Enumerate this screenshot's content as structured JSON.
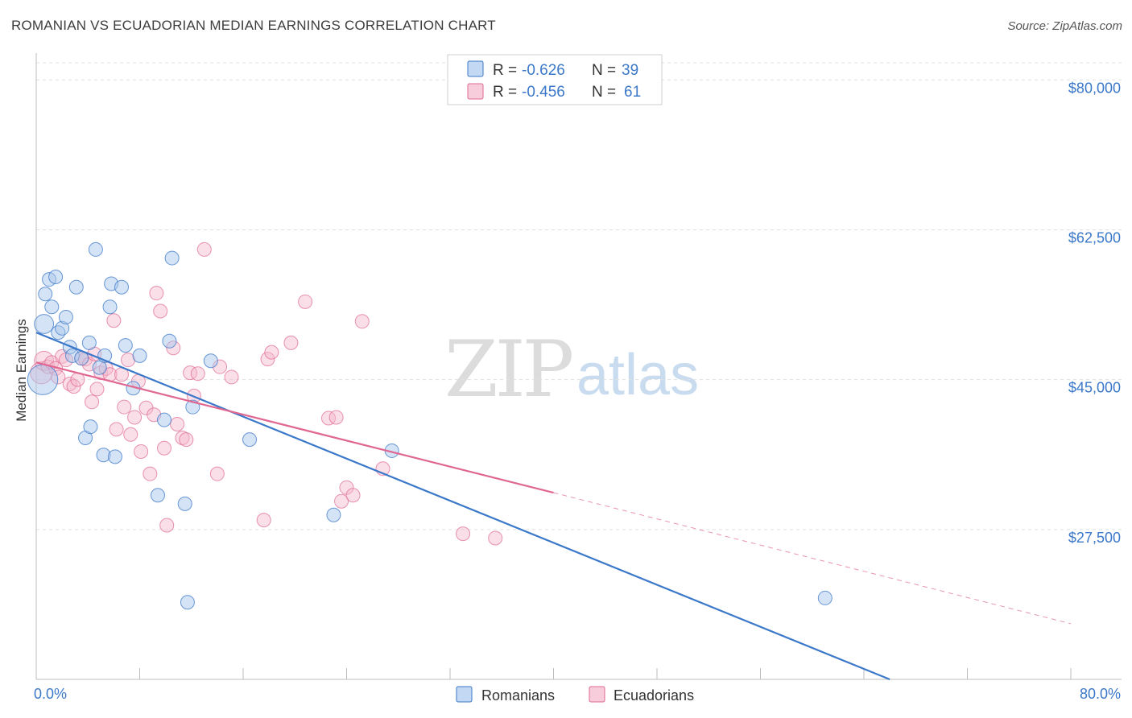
{
  "title": "ROMANIAN VS ECUADORIAN MEDIAN EARNINGS CORRELATION CHART",
  "source": "Source: ZipAtlas.com",
  "watermark": {
    "zip": "ZIP",
    "atlas": "atlas"
  },
  "colors": {
    "romanian": "#3b78c9",
    "romanian_fill": "#a9c8ec",
    "ecuadorian": "#e06791",
    "ecuadorian_fill": "#f5b8cc",
    "axis_text": "#3b78c9",
    "grid": "#e0e0e0"
  },
  "legend": {
    "r_label": "R =",
    "n_label": "N =",
    "romanian_r": "-0.626",
    "romanian_n": "39",
    "ecuadorian_r": "-0.456",
    "ecuadorian_n": "61"
  },
  "bottom_legend": {
    "romanians": "Romanians",
    "ecuadorians": "Ecuadorians"
  },
  "chart_data": {
    "type": "scatter",
    "title": "ROMANIAN VS ECUADORIAN MEDIAN EARNINGS CORRELATION CHART",
    "xlabel": "",
    "ylabel": "Median Earnings",
    "xlim": [
      0,
      80
    ],
    "ylim": [
      10000,
      82000
    ],
    "y_ticks": [
      27500,
      45000,
      62500,
      80000
    ],
    "y_tick_labels": [
      "$27,500",
      "$45,000",
      "$62,500",
      "$80,000"
    ],
    "x_tick_labels": [
      "0.0%",
      "80.0%"
    ],
    "series": [
      {
        "name": "Romanians",
        "color": "#3b78c9",
        "points": [
          [
            0.5,
            45000,
            2.2
          ],
          [
            0.6,
            51500,
            1.4
          ],
          [
            0.7,
            55000,
            1
          ],
          [
            1.0,
            56700,
            1
          ],
          [
            1.2,
            53500,
            1
          ],
          [
            1.5,
            57000,
            1
          ],
          [
            1.7,
            50500,
            1
          ],
          [
            2.0,
            51000,
            1
          ],
          [
            2.3,
            52300,
            1
          ],
          [
            2.6,
            48800,
            1
          ],
          [
            2.8,
            47800,
            1
          ],
          [
            3.1,
            55800,
            1
          ],
          [
            3.5,
            47500,
            1
          ],
          [
            3.8,
            38200,
            1
          ],
          [
            4.1,
            49300,
            1
          ],
          [
            4.2,
            39500,
            1
          ],
          [
            4.6,
            60200,
            1
          ],
          [
            4.9,
            46400,
            1
          ],
          [
            5.2,
            36200,
            1
          ],
          [
            5.3,
            47800,
            1
          ],
          [
            5.7,
            53500,
            1
          ],
          [
            5.8,
            56200,
            1
          ],
          [
            6.1,
            36000,
            1
          ],
          [
            6.6,
            55800,
            1
          ],
          [
            6.9,
            49000,
            1
          ],
          [
            7.5,
            44000,
            1
          ],
          [
            8.0,
            47800,
            1
          ],
          [
            9.4,
            31500,
            1
          ],
          [
            9.9,
            40300,
            1
          ],
          [
            10.3,
            49500,
            1
          ],
          [
            10.5,
            59200,
            1
          ],
          [
            11.5,
            30500,
            1
          ],
          [
            11.7,
            19000,
            1
          ],
          [
            12.1,
            41800,
            1
          ],
          [
            13.5,
            47200,
            1
          ],
          [
            16.5,
            38000,
            1
          ],
          [
            23.0,
            29200,
            1
          ],
          [
            27.5,
            36700,
            1
          ],
          [
            61.0,
            19500,
            1
          ]
        ],
        "trend": {
          "x": [
            0,
            66.0
          ],
          "y": [
            50500,
            10000
          ]
        }
      },
      {
        "name": "Ecuadorians",
        "color": "#e06791",
        "points": [
          [
            0.4,
            45800,
            1.6
          ],
          [
            0.6,
            47200,
            1.4
          ],
          [
            0.9,
            46500,
            1
          ],
          [
            1.2,
            47000,
            1
          ],
          [
            1.5,
            46300,
            1
          ],
          [
            1.7,
            45300,
            1
          ],
          [
            2.0,
            47700,
            1
          ],
          [
            2.3,
            47300,
            1
          ],
          [
            2.6,
            44500,
            1
          ],
          [
            2.9,
            44200,
            1
          ],
          [
            3.2,
            45000,
            1
          ],
          [
            3.5,
            47500,
            1
          ],
          [
            3.8,
            47400,
            1
          ],
          [
            4.1,
            46800,
            1
          ],
          [
            4.3,
            42400,
            1
          ],
          [
            4.5,
            48000,
            1
          ],
          [
            4.7,
            43900,
            1
          ],
          [
            5.0,
            45800,
            1
          ],
          [
            5.4,
            46300,
            1
          ],
          [
            5.7,
            45600,
            1
          ],
          [
            6.0,
            51900,
            1
          ],
          [
            6.2,
            39200,
            1
          ],
          [
            6.6,
            45600,
            1
          ],
          [
            6.8,
            41800,
            1
          ],
          [
            7.1,
            47300,
            1
          ],
          [
            7.3,
            38600,
            1
          ],
          [
            7.6,
            40600,
            1
          ],
          [
            7.9,
            44800,
            1
          ],
          [
            8.1,
            36600,
            1
          ],
          [
            8.5,
            41700,
            1
          ],
          [
            8.8,
            34000,
            1
          ],
          [
            9.1,
            40900,
            1
          ],
          [
            9.3,
            55100,
            1
          ],
          [
            9.6,
            53000,
            1
          ],
          [
            9.9,
            37000,
            1
          ],
          [
            10.1,
            28000,
            1
          ],
          [
            10.6,
            48700,
            1
          ],
          [
            10.9,
            39800,
            1
          ],
          [
            11.3,
            38200,
            1
          ],
          [
            11.6,
            38000,
            1
          ],
          [
            11.9,
            45800,
            1
          ],
          [
            12.2,
            43100,
            1
          ],
          [
            12.5,
            45700,
            1
          ],
          [
            13.0,
            60200,
            1
          ],
          [
            14.0,
            34000,
            1
          ],
          [
            14.2,
            46500,
            1
          ],
          [
            15.1,
            45300,
            1
          ],
          [
            17.6,
            28600,
            1
          ],
          [
            17.9,
            47400,
            1
          ],
          [
            18.2,
            48200,
            1
          ],
          [
            19.7,
            49300,
            1
          ],
          [
            20.8,
            54100,
            1
          ],
          [
            22.6,
            40500,
            1
          ],
          [
            23.2,
            40600,
            1
          ],
          [
            23.6,
            30800,
            1
          ],
          [
            24.0,
            32400,
            1
          ],
          [
            24.5,
            31500,
            1
          ],
          [
            25.2,
            51800,
            1
          ],
          [
            26.8,
            34600,
            1
          ],
          [
            33.0,
            27000,
            1
          ],
          [
            35.5,
            26500,
            1
          ]
        ],
        "trend": {
          "x": [
            0,
            40
          ],
          "y": [
            47000,
            31800
          ]
        },
        "trend_dashed": {
          "x": [
            40,
            80
          ],
          "y": [
            31800,
            16500
          ]
        }
      }
    ]
  }
}
